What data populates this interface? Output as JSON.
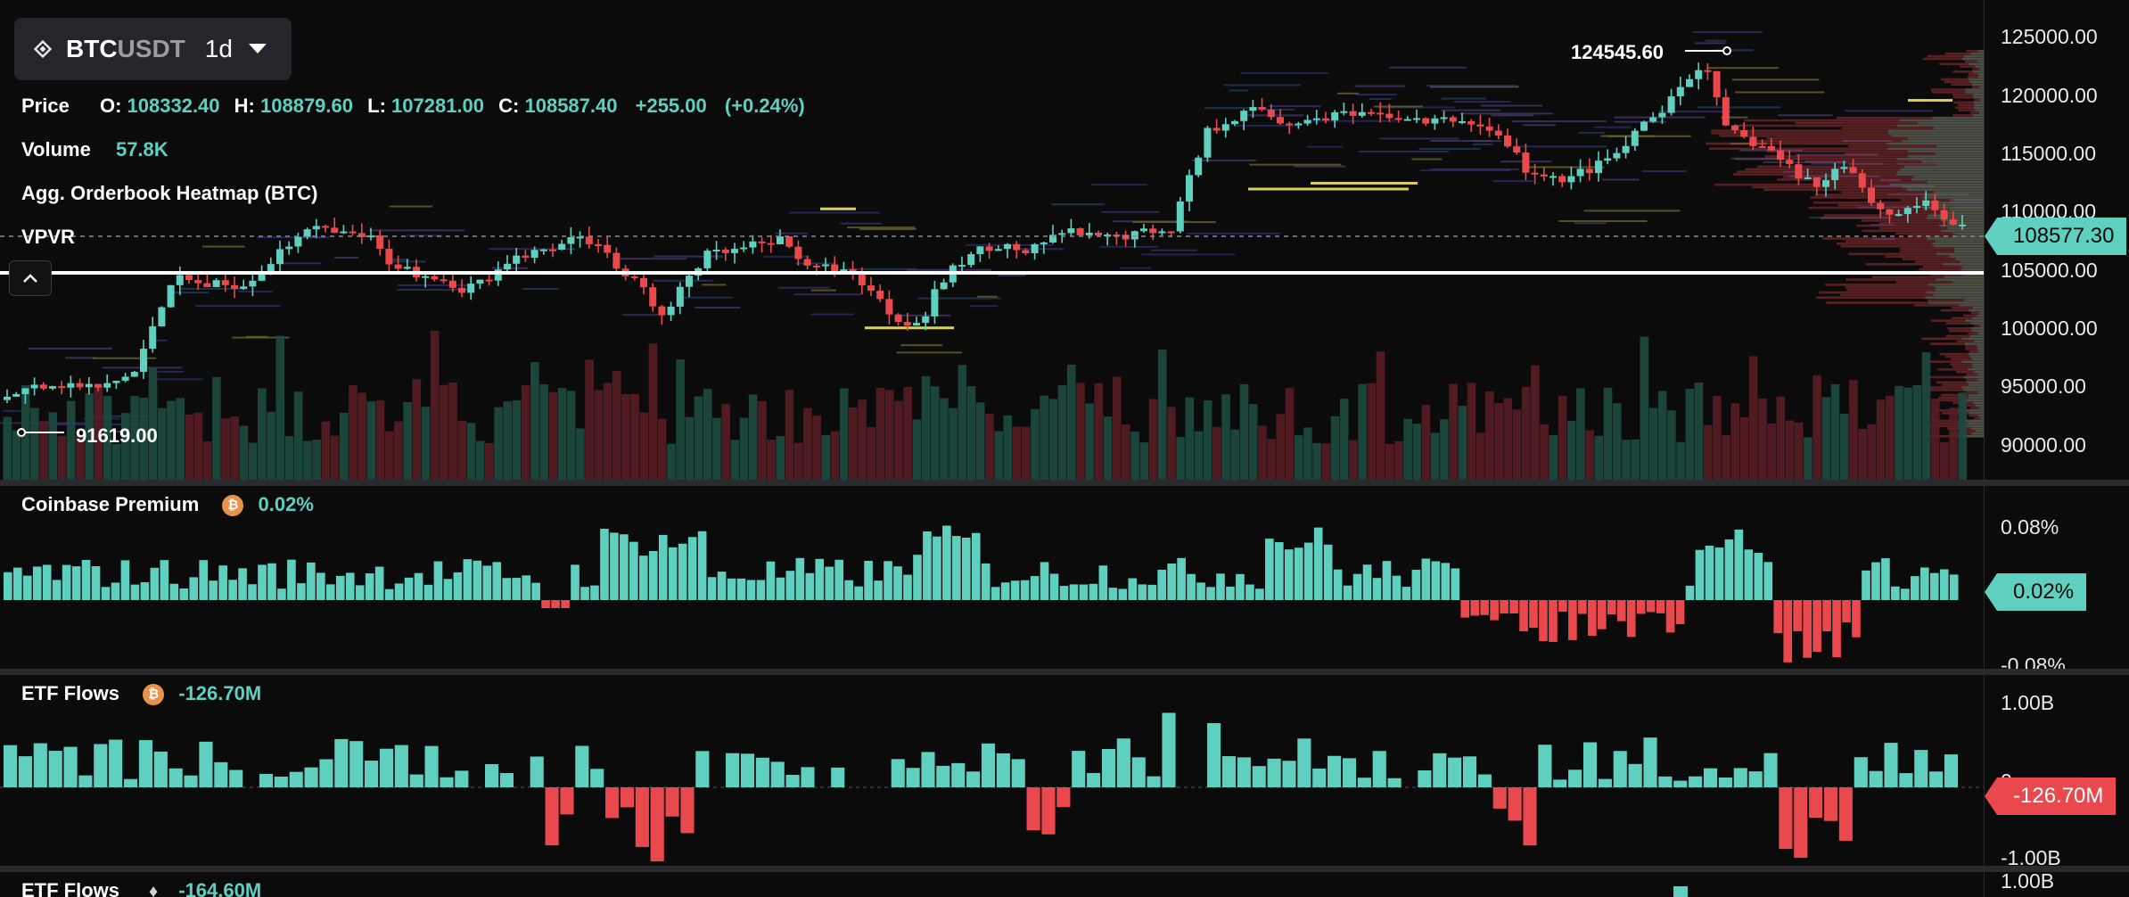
{
  "header": {
    "symbol_base": "BTC",
    "symbol_quote": "USDT",
    "interval": "1d"
  },
  "legend": {
    "price_label": "Price",
    "open_label": "O:",
    "open": "108332.40",
    "high_label": "H:",
    "high": "108879.60",
    "low_label": "L:",
    "low": "107281.00",
    "close_label": "C:",
    "close": "108587.40",
    "change": "+255.00",
    "change_pct": "(+0.24%)",
    "volume_label": "Volume",
    "volume": "57.8K",
    "heatmap_label": "Agg. Orderbook Heatmap (BTC)",
    "vpvr_label": "VPVR"
  },
  "price_axis": {
    "ticks": [
      "125000.00",
      "120000.00",
      "115000.00",
      "110000.00",
      "105000.00",
      "100000.00",
      "95000.00",
      "90000.00"
    ],
    "current_price": "108577.30",
    "high_marker": "124545.60",
    "low_marker": "91619.00"
  },
  "coinbase_premium": {
    "label": "Coinbase Premium",
    "value": "0.02%",
    "ticks": [
      "0.08%",
      "-0.08%"
    ],
    "current": "0.02%"
  },
  "etf_flows_btc": {
    "label": "ETF Flows",
    "value": "-126.70M",
    "ticks": [
      "1.00B",
      "0",
      "-1.00B"
    ],
    "current": "-126.70M"
  },
  "etf_flows_eth": {
    "label": "ETF Flows",
    "value": "-164.60M",
    "ticks": [
      "1.00B"
    ]
  },
  "colors": {
    "up": "#5fd0bf",
    "down": "#e9494c",
    "background": "#0b0b0c"
  },
  "icons": {
    "exchange": "binance-diamond-icon",
    "interval_dropdown": "caret-down-icon",
    "collapse": "chevron-up-icon",
    "btc": "bitcoin-icon",
    "eth": "ethereum-icon"
  }
}
